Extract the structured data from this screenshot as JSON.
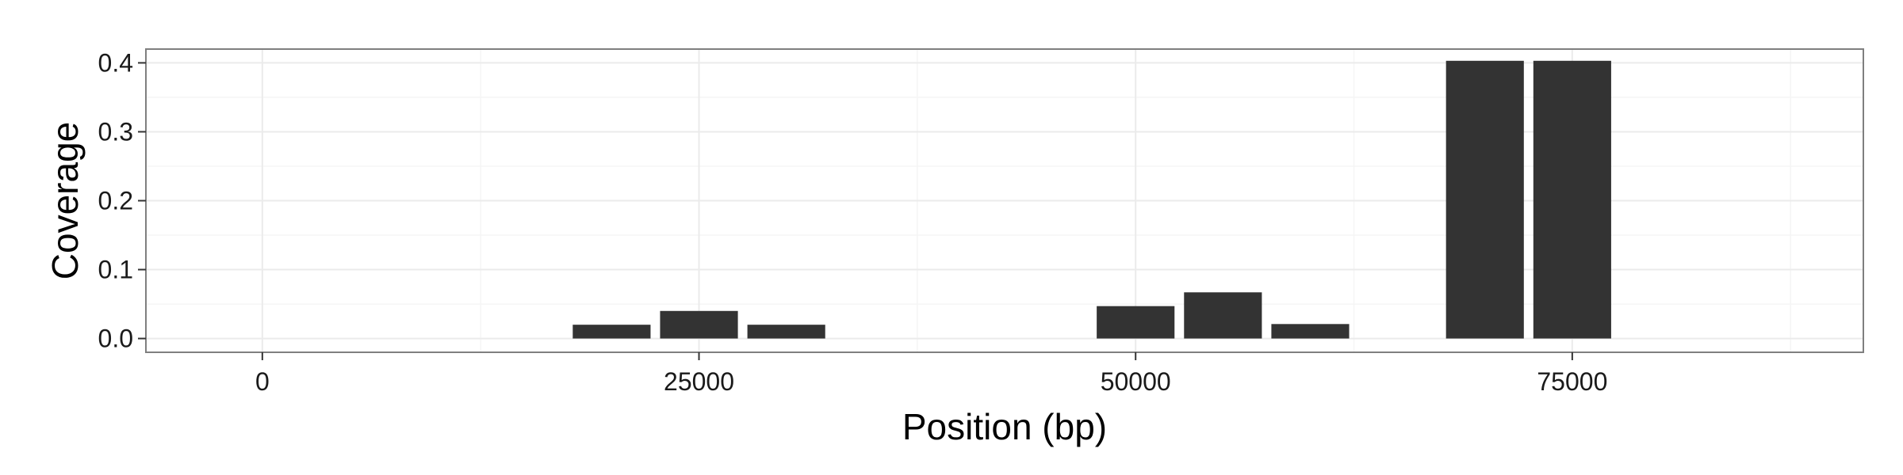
{
  "chart_data": {
    "type": "bar",
    "title": "",
    "xlabel": "Position (bp)",
    "ylabel": "Coverage",
    "xlim": [
      -6667,
      91667
    ],
    "ylim": [
      -0.02,
      0.42
    ],
    "x_ticks": [
      0,
      25000,
      50000,
      75000
    ],
    "x_tick_labels": [
      "0",
      "25000",
      "50000",
      "75000"
    ],
    "y_ticks": [
      0.0,
      0.1,
      0.2,
      0.3,
      0.4
    ],
    "y_tick_labels": [
      "0.0",
      "0.1",
      "0.2",
      "0.3",
      "0.4"
    ],
    "bin_width": 5000,
    "bars": [
      {
        "x": 20000,
        "value": 0.02
      },
      {
        "x": 25000,
        "value": 0.04
      },
      {
        "x": 30000,
        "value": 0.02
      },
      {
        "x": 50000,
        "value": 0.047
      },
      {
        "x": 55000,
        "value": 0.067
      },
      {
        "x": 60000,
        "value": 0.021
      },
      {
        "x": 70000,
        "value": 0.403
      },
      {
        "x": 75000,
        "value": 0.403
      }
    ],
    "grid": true,
    "legend": "none",
    "colors": {
      "bar": "#333333",
      "panel_border": "#7f7f7f",
      "grid_major": "#ebebeb",
      "grid_minor": "#f5f5f5"
    }
  }
}
